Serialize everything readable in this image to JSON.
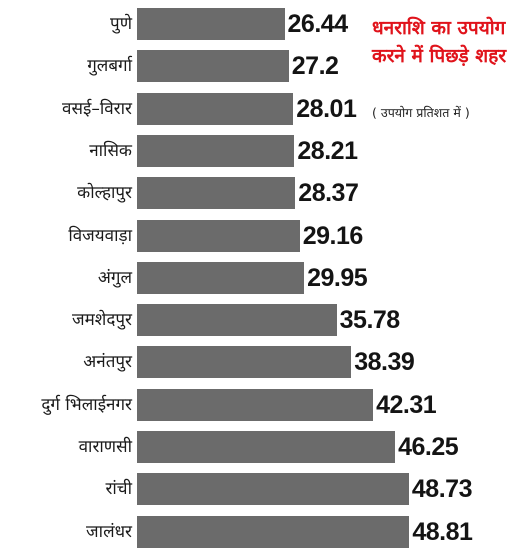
{
  "chart_data": {
    "type": "bar",
    "orientation": "horizontal",
    "title": "धनराशि का उपयोग करने में पिछड़े शहर",
    "subtitle": "( उपयोग प्रतिशत में )",
    "categories": [
      "पुणे",
      "गुलबर्गा",
      "वसई–विरार",
      "नासिक",
      "कोल्हापुर",
      "विजयवाड़ा",
      "अंगुल",
      "जमशेदपुर",
      "अनंतपुर",
      "दुर्ग भिलाईनगर",
      "वाराणसी",
      "रांची",
      "जालंधर"
    ],
    "values": [
      26.44,
      27.2,
      28.01,
      28.21,
      28.37,
      29.16,
      29.95,
      35.78,
      38.39,
      42.31,
      46.25,
      48.73,
      48.81
    ],
    "value_labels": [
      "26.44",
      "27.2",
      "28.01",
      "28.21",
      "28.37",
      "29.16",
      "29.95",
      "35.78",
      "38.39",
      "42.31",
      "46.25",
      "48.73",
      "48.81"
    ],
    "bar_color": "#6b6b6b",
    "title_color": "#e0131b",
    "grid": false,
    "legend": "none"
  }
}
